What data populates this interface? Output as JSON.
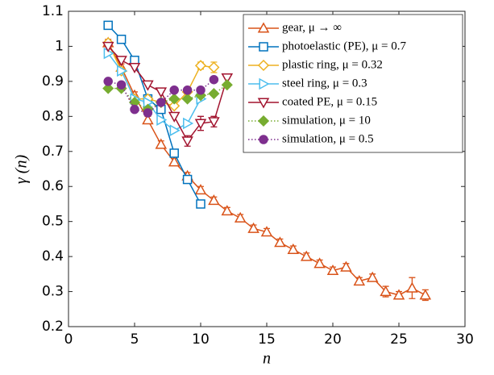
{
  "chart_data": {
    "type": "line",
    "xlabel": "n",
    "ylabel": "γ (n)",
    "xlim": [
      0,
      30
    ],
    "ylim": [
      0.2,
      1.1
    ],
    "xticks": [
      0,
      5,
      10,
      15,
      20,
      25,
      30
    ],
    "yticks": [
      0.2,
      0.3,
      0.4,
      0.5,
      0.6,
      0.7,
      0.8,
      0.9,
      1,
      1.1
    ],
    "legend": "upper right",
    "series": [
      {
        "name": "gear, μ → ∞",
        "color": "#d95319",
        "marker": "triangle-up",
        "line": "solid",
        "x": [
          3,
          4,
          5,
          6,
          7,
          8,
          9,
          10,
          11,
          12,
          13,
          14,
          15,
          16,
          17,
          18,
          19,
          20,
          21,
          22,
          23,
          24,
          25,
          26,
          27
        ],
        "values": [
          1.01,
          0.94,
          0.86,
          0.79,
          0.72,
          0.67,
          0.63,
          0.59,
          0.56,
          0.53,
          0.51,
          0.48,
          0.47,
          0.44,
          0.42,
          0.4,
          0.38,
          0.36,
          0.37,
          0.33,
          0.34,
          0.3,
          0.29,
          0.31,
          0.29
        ],
        "errors": [
          0.01,
          0.01,
          0.01,
          0.01,
          0.01,
          0.01,
          0.01,
          0.01,
          0.01,
          0.01,
          0.01,
          0.01,
          0.01,
          0.01,
          0.01,
          0.01,
          0.01,
          0.01,
          0.01,
          0.01,
          0.01,
          0.015,
          0.01,
          0.03,
          0.015
        ]
      },
      {
        "name": "photoelastic (PE), μ = 0.7",
        "color": "#0072bd",
        "marker": "square",
        "line": "solid",
        "x": [
          3,
          4,
          5,
          6,
          7,
          8,
          9,
          10
        ],
        "values": [
          1.06,
          1.02,
          0.96,
          0.85,
          0.82,
          0.695,
          0.62,
          0.55
        ],
        "errors": [
          0.01,
          0.01,
          0.01,
          0.01,
          0.01,
          0.01,
          0.01,
          0.01
        ]
      },
      {
        "name": "plastic ring, μ = 0.32",
        "color": "#edb120",
        "marker": "diamond",
        "line": "solid",
        "x": [
          3,
          4,
          5,
          6,
          7,
          8,
          9,
          10,
          11
        ],
        "values": [
          1.01,
          0.93,
          0.85,
          0.85,
          0.84,
          0.83,
          0.87,
          0.945,
          0.94
        ],
        "errors": [
          null,
          null,
          null,
          null,
          null,
          null,
          null,
          0.01,
          0.015
        ]
      },
      {
        "name": "steel ring, μ = 0.3",
        "color": "#4dbeee",
        "marker": "triangle-right",
        "line": "solid",
        "x": [
          3,
          4,
          5,
          6,
          7,
          8,
          9,
          10
        ],
        "values": [
          0.98,
          0.93,
          0.85,
          0.84,
          0.79,
          0.76,
          0.78,
          0.85
        ]
      },
      {
        "name": "coated PE, μ = 0.15",
        "color": "#a2142f",
        "marker": "triangle-down",
        "line": "solid",
        "x": [
          3,
          4,
          5,
          6,
          7,
          8,
          9,
          10,
          11,
          12
        ],
        "values": [
          1.0,
          0.96,
          0.94,
          0.89,
          0.87,
          0.8,
          0.73,
          0.78,
          0.785,
          0.91
        ],
        "errors": [
          null,
          null,
          null,
          null,
          null,
          null,
          0.015,
          0.02,
          0.015,
          null
        ]
      },
      {
        "name": "simulation, μ = 10",
        "color": "#77ac30",
        "marker": "diamond-filled",
        "line": "dotted",
        "x": [
          3,
          4,
          5,
          6,
          7,
          8,
          9,
          10,
          11,
          12
        ],
        "values": [
          0.88,
          0.88,
          0.84,
          0.82,
          0.84,
          0.85,
          0.85,
          0.86,
          0.865,
          0.89
        ]
      },
      {
        "name": "simulation, μ = 0.5",
        "color": "#7e2f8e",
        "marker": "circle-filled",
        "line": "dotted",
        "x": [
          3,
          4,
          5,
          6,
          7,
          8,
          9,
          10,
          11
        ],
        "values": [
          0.9,
          0.89,
          0.82,
          0.81,
          0.84,
          0.875,
          0.875,
          0.875,
          0.905
        ]
      }
    ]
  }
}
